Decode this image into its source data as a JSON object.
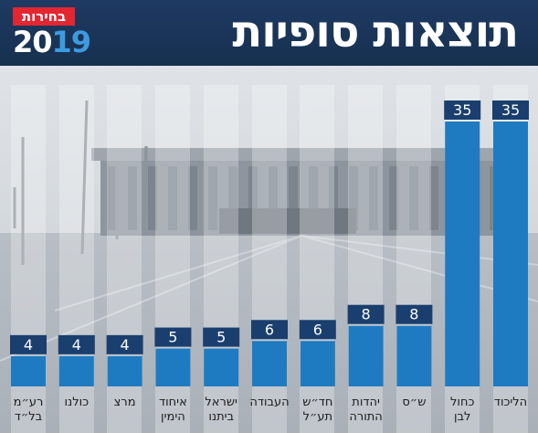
{
  "header": {
    "title": "תוצאות סופיות",
    "badge_label": "בחירות",
    "badge_year_a": "20",
    "badge_year_b": "19"
  },
  "colors": {
    "bar": "#1f7bc1",
    "label_box": "#1a3f6e",
    "header": "#1a3357",
    "label_text": "#1c1c1c"
  },
  "chart_data": {
    "type": "bar",
    "title": "תוצאות סופיות",
    "orientation": "right-to-left",
    "categories": [
      "הליכוד",
      "כחול לבן",
      "ש״ס",
      "יהדות התורה",
      "חד״ש תע״ל",
      "העבודה",
      "ישראל ביתנו",
      "איחוד הימין",
      "מרצ",
      "כולנו",
      "רע״מ בל״ד"
    ],
    "category_lines": [
      [
        "הליכוד"
      ],
      [
        "כחול",
        "לבן"
      ],
      [
        "ש״ס"
      ],
      [
        "יהדות",
        "התורה"
      ],
      [
        "חד״ש",
        "תע״ל"
      ],
      [
        "העבודה"
      ],
      [
        "ישראל",
        "ביתנו"
      ],
      [
        "איחוד",
        "הימין"
      ],
      [
        "מרצ"
      ],
      [
        "כולנו"
      ],
      [
        "רע״מ",
        "בל״ד"
      ]
    ],
    "values": [
      35,
      35,
      8,
      8,
      6,
      6,
      5,
      5,
      4,
      4,
      4
    ],
    "data_labels": true,
    "ylim": [
      0,
      35
    ],
    "grid": false,
    "legend": "none"
  }
}
